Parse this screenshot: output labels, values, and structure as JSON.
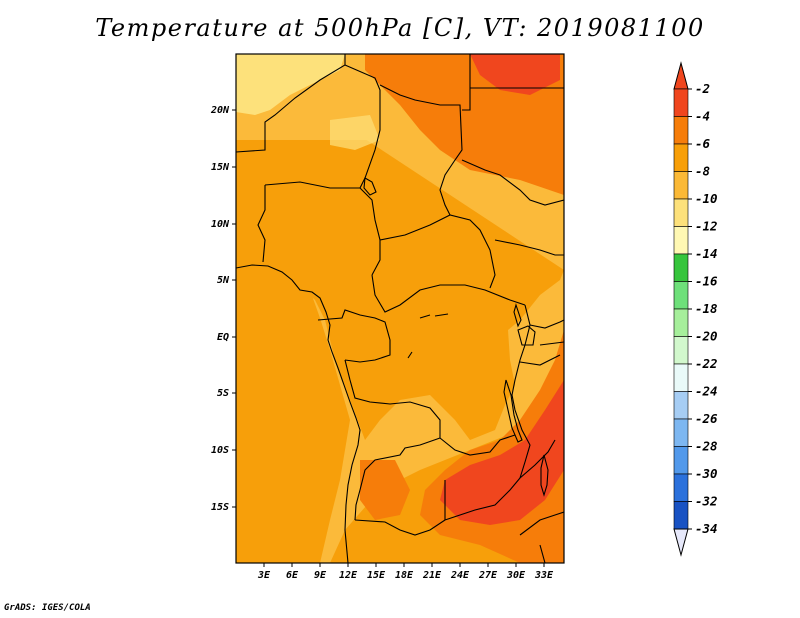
{
  "title": "Temperature at 500hPa [C], VT: 2019081100",
  "footer": "GrADS: IGES/COLA",
  "axes": {
    "lat_labels": [
      "20N",
      "15N",
      "10N",
      "5N",
      "EQ",
      "5S",
      "10S",
      "15S"
    ],
    "lat_values": [
      20,
      15,
      10,
      5,
      0,
      -5,
      -10,
      -15
    ],
    "lon_labels": [
      "3E",
      "6E",
      "9E",
      "12E",
      "15E",
      "18E",
      "21E",
      "24E",
      "27E",
      "30E",
      "33E"
    ],
    "lon_values": [
      3,
      6,
      9,
      12,
      15,
      18,
      21,
      24,
      27,
      30,
      33
    ],
    "lat_range": [
      -20,
      25
    ],
    "lon_range": [
      0,
      35
    ]
  },
  "colorbar": {
    "labels": [
      "-2",
      "-4",
      "-6",
      "-8",
      "-10",
      "-12",
      "-14",
      "-16",
      "-18",
      "-20",
      "-22",
      "-24",
      "-26",
      "-28",
      "-30",
      "-32",
      "-34"
    ],
    "colors": [
      "#f0461e",
      "#f67d0a",
      "#f89f08",
      "#fbb936",
      "#fde17b",
      "#fff8b3",
      "#36c53c",
      "#6ee07a",
      "#a6ef9b",
      "#d2f8cd",
      "#eafaf9",
      "#a6cdf4",
      "#7db7f1",
      "#5299eb",
      "#2b71dc",
      "#1852c3",
      "#0d1a70"
    ],
    "max_color": "#f0461e",
    "min_color": "#e6e8fa"
  },
  "colors": {
    "ocean_orange": "#f79f0a",
    "land_light": "#fbba3a",
    "warm_orange": "#f57f0e",
    "hot_red": "#f0461e",
    "pale_yellow": "#fde17b"
  }
}
